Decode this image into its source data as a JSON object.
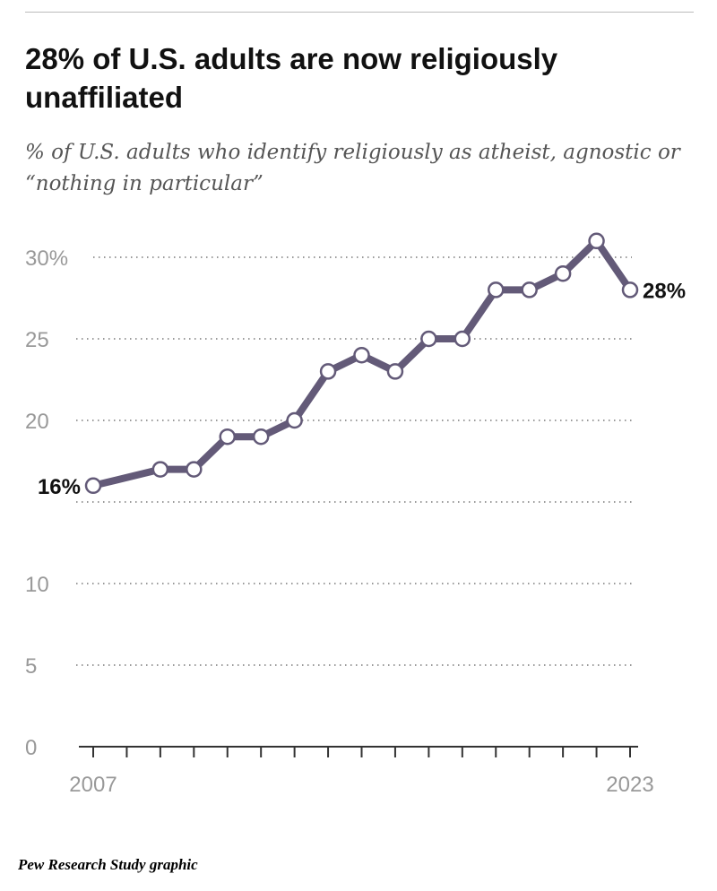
{
  "title": "28% of U.S. adults are now religiously unaffiliated",
  "subtitle": "% of U.S. adults who identify religiously as atheist, agnostic or “nothing in particular”",
  "credit": "Pew Research Study graphic",
  "colors": {
    "line": "#635a78",
    "grid": "#999999",
    "axis": "#333333"
  },
  "chart_data": {
    "type": "line",
    "title": "28% of U.S. adults are now religiously unaffiliated",
    "x": [
      2007,
      2009,
      2010,
      2011,
      2012,
      2013,
      2014,
      2015,
      2016,
      2017,
      2018,
      2019,
      2020,
      2021,
      2022,
      2023
    ],
    "values": [
      16,
      17,
      17,
      19,
      19,
      20,
      23,
      24,
      23,
      25,
      25,
      28,
      28,
      29,
      31,
      28
    ],
    "xlim": [
      2007,
      2023
    ],
    "ylim": [
      0,
      30
    ],
    "yticks": [
      0,
      5,
      10,
      15,
      20,
      25,
      30
    ],
    "ytick_labels": [
      "0",
      "5",
      "10",
      "",
      "20",
      "25",
      "30%"
    ],
    "xtick_labels": [
      "2007",
      "2023"
    ],
    "data_labels": {
      "start": "16%",
      "end": "28%"
    },
    "grid": true
  }
}
